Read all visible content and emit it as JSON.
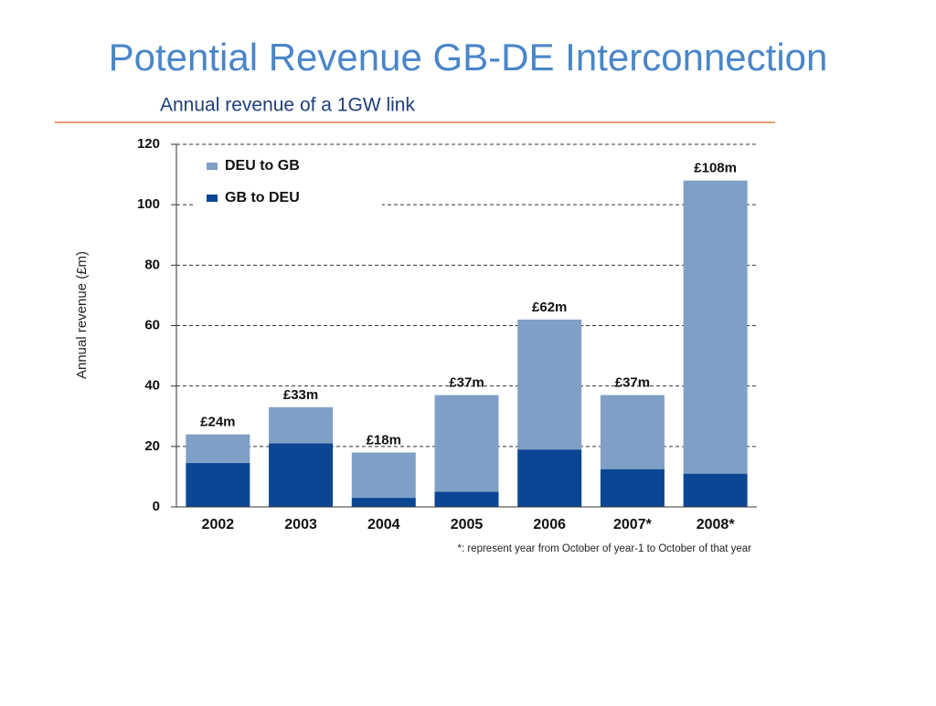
{
  "slide_title": "Potential Revenue GB-DE Interconnection",
  "chart_data": {
    "type": "stacked_bar",
    "title": "Annual revenue of a 1GW link",
    "y_label": "Annual revenue (£m)",
    "footnote": "*: represent year from October of year-1 to October of that year",
    "categories": [
      "2002",
      "2003",
      "2004",
      "2005",
      "2006",
      "2007*",
      "2008*"
    ],
    "series": [
      {
        "name": "DEU to GB",
        "color": "#7f9fc6",
        "values": [
          9.5,
          12,
          15,
          32,
          43,
          24.5,
          97
        ]
      },
      {
        "name": "GB to DEU",
        "color": "#0b4694",
        "values": [
          14.5,
          21,
          3,
          5,
          19,
          12.5,
          11
        ]
      }
    ],
    "totals": {
      "values": [
        24,
        33,
        18,
        37,
        62,
        37,
        108
      ],
      "value_labels": [
        "£24m",
        "£33m",
        "£18m",
        "£37m",
        "£62m",
        "£37m",
        "£108m"
      ]
    },
    "ylim": [
      0,
      120
    ],
    "yticks": [
      0,
      20,
      40,
      60,
      80,
      100,
      120
    ],
    "grid": true,
    "legend": "top-left"
  }
}
